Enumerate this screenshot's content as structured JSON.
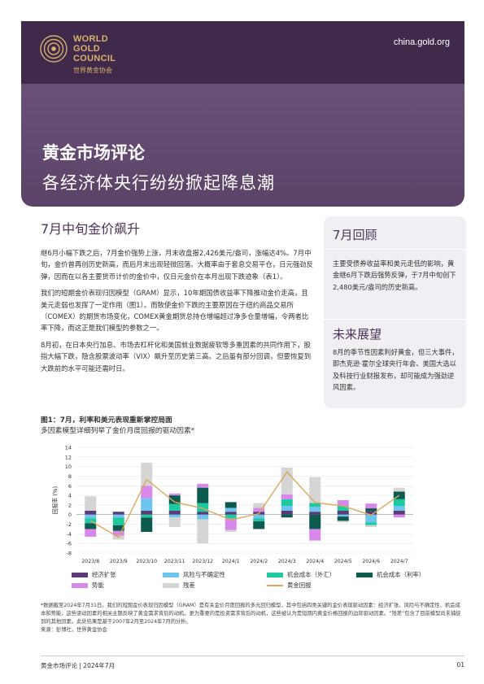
{
  "header": {
    "logo_line1": "WORLD",
    "logo_line2": "GOLD",
    "logo_line3": "COUNCIL",
    "logo_cn": "世界黄金协会",
    "site": "china.gold.org",
    "title": "黄金市场评论",
    "subtitle": "各经济体央行纷纷掀起降息潮"
  },
  "main": {
    "heading": "7月中旬金价飙升",
    "paragraphs": [
      "继6月小幅下跌之后，7月金价强势上涨，月末收盘报2,426美元/盎司，涨幅达4%。7月中旬，金价曾再创历史新高，而后月末出现轻微回落。大概率由于套息交易平仓，日元强劲反弹，因而在以各主要货币计价的金价中，仅日元金价在本月出现下跌迹象（表1）。",
      "我们的短期金价表现归因模型（GRAM）显示，10年期国债收益率下降推动金价走高，且美元走弱也发挥了一定作用（图1）。而致使金价下跌的主要原因在于纽约商品交易所（COMEX）的期货市场变化，COMEX黄金期货总持仓增幅超过净多仓量增幅，令两者比率下降，而这正是我们模型的参数之一。",
      "8月初，在日本央行加息、市场去杠杆化和美国就业数据疲软等多重因素的共同作用下，股指大幅下跌，隐含股票波动率（VIX）飙升至历史第三高。之后虽有部分回调，但要恢复到大跌前的水平可能还需时日。"
    ]
  },
  "sidebar": {
    "h1": "7月回顾",
    "p1": "主要受债券收益率和美元走低的影响，黄金继6月下跌后强势反弹，于7月中旬创下2,480美元/盎司的历史新高。",
    "h2": "未来展望",
    "p2": "8月的季节性因素利好黄金，但三大事件，即杰克逊·霍尔全球央行年会、美国大选以及科技行业财报发布，却可能成为强劲逆风因素。"
  },
  "figure": {
    "title": "图1：7月，利率和美元表现重新掌控局面",
    "subtitle": "多因素模型详细列举了金价月度回报的驱动因素*"
  },
  "chart_data": {
    "type": "bar",
    "stacked": true,
    "ylabel": "回报率 (%)",
    "ylim": [
      -8,
      14
    ],
    "yticks": [
      -8,
      -6,
      -4,
      -2,
      0,
      2,
      4,
      6,
      8,
      10,
      12,
      14
    ],
    "grid": true,
    "legend_position": "bottom",
    "categories": [
      "2023/8",
      "2023/9",
      "2023/10",
      "2023/11",
      "2023/12",
      "2024/1",
      "2024/2",
      "2024/3",
      "2024/4",
      "2024/5",
      "2024/6",
      "2024/7"
    ],
    "series": [
      {
        "name": "经济扩张",
        "color": "#5b3a78",
        "values": [
          0.8,
          0.6,
          0.8,
          0.8,
          0.6,
          0.6,
          0.6,
          0.8,
          0.6,
          0.8,
          0.7,
          0.8
        ]
      },
      {
        "name": "风险与不确定性",
        "color": "#6ec3ef",
        "values": [
          -0.8,
          -0.6,
          2.6,
          -0.6,
          -1.0,
          0.8,
          -0.8,
          1.0,
          1.0,
          -0.4,
          -1.6,
          1.0
        ]
      },
      {
        "name": "机会成本（外汇）",
        "color": "#1fc9a0",
        "values": [
          -1.0,
          -1.6,
          -0.6,
          1.4,
          1.8,
          -0.8,
          -0.6,
          1.4,
          0.8,
          1.0,
          -0.6,
          1.4
        ]
      },
      {
        "name": "机会成本（利率）",
        "color": "#0d5a4e",
        "values": [
          -1.2,
          -1.2,
          -3.0,
          1.8,
          3.2,
          1.2,
          -1.6,
          -0.6,
          -3.0,
          -0.9,
          0.6,
          1.6
        ]
      },
      {
        "name": "势能",
        "color": "#d788ea",
        "values": [
          -1.6,
          -1.0,
          2.6,
          0.4,
          0.8,
          -2.4,
          0.8,
          1.0,
          -2.4,
          1.2,
          1.0,
          -0.6
        ]
      },
      {
        "name": "残差",
        "color": "#d5d5d5",
        "values": [
          3.0,
          -0.8,
          4.8,
          -2.0,
          -5.0,
          -0.4,
          1.0,
          5.6,
          5.4,
          -0.3,
          -0.4,
          0.8
        ]
      }
    ],
    "line": {
      "name": "黄金回报",
      "color": "#d9a95b",
      "values": [
        -1.3,
        -4.7,
        7.3,
        2.6,
        1.3,
        -1.1,
        0.2,
        8.9,
        2.5,
        1.8,
        -0.1,
        4.0
      ]
    }
  },
  "notes": {
    "text": "*数据截至2024年7月31日。我们的短期金价表现归因模型（GRAM）是有关金价月度回报的多元回归模型，其中包括四类关键的金价表现驱动因素：经济扩张、风险与不确定性、机会成本和势能，这些驱动因素的相关主题反映了黄金需求背后的动机。更为重要的是投资需求背后的动机，这些被认为是短期内黄金价格回报的边际驱动因素。“残差”包含了目前模型尚未捕捉到的其他因素。此处结果是基于2007年2月至2024年7月的分析。",
    "source": "来源：彭博社，世界黄金协会"
  },
  "footer": {
    "left": "黄金市场评论 | 2024年7月",
    "page": "01"
  }
}
